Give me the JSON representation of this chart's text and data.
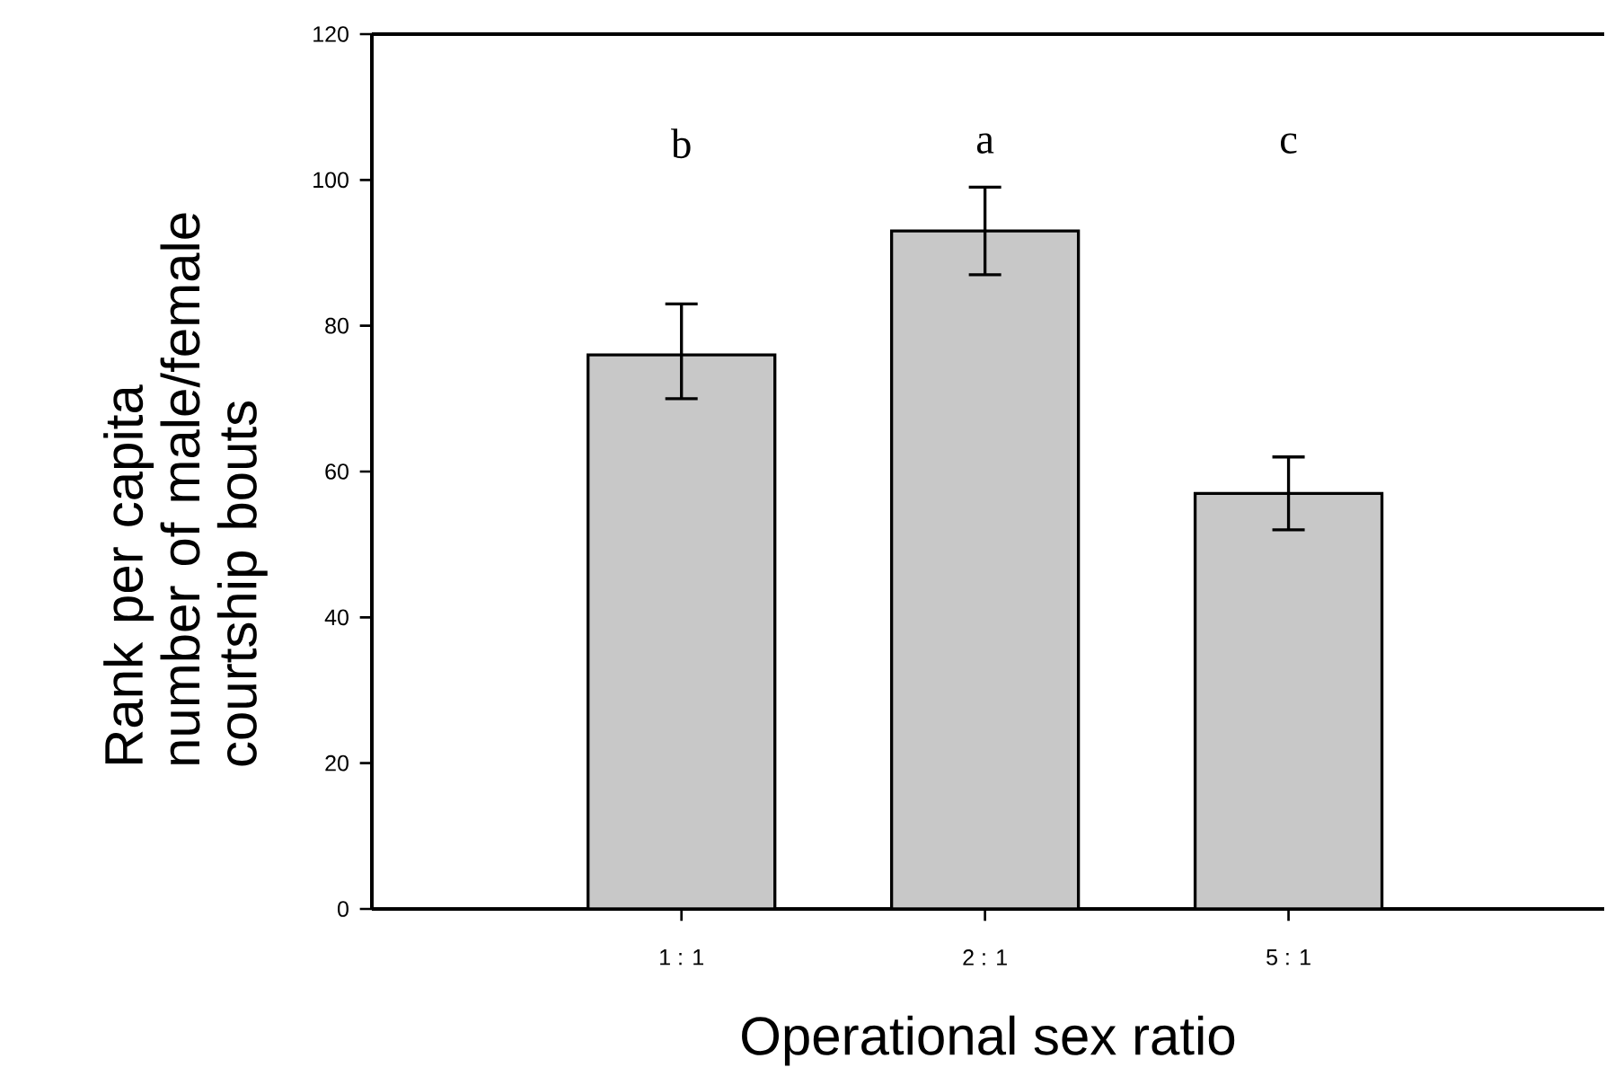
{
  "chart_data": {
    "type": "bar",
    "xlabel": "Operational sex ratio",
    "ylabel": "Rank per capita number of male/female courtship bouts",
    "categories": [
      "1 : 1",
      "2 : 1",
      "5 : 1"
    ],
    "values": [
      76,
      93,
      57
    ],
    "errors": [
      [
        70,
        83
      ],
      [
        87,
        99
      ],
      [
        52,
        62
      ]
    ],
    "color": "#c8c8c8",
    "ylim": [
      0,
      120
    ],
    "yticks": [
      0,
      20,
      40,
      60,
      80,
      100,
      120
    ],
    "annotations": [
      "b",
      "a",
      "c"
    ]
  }
}
